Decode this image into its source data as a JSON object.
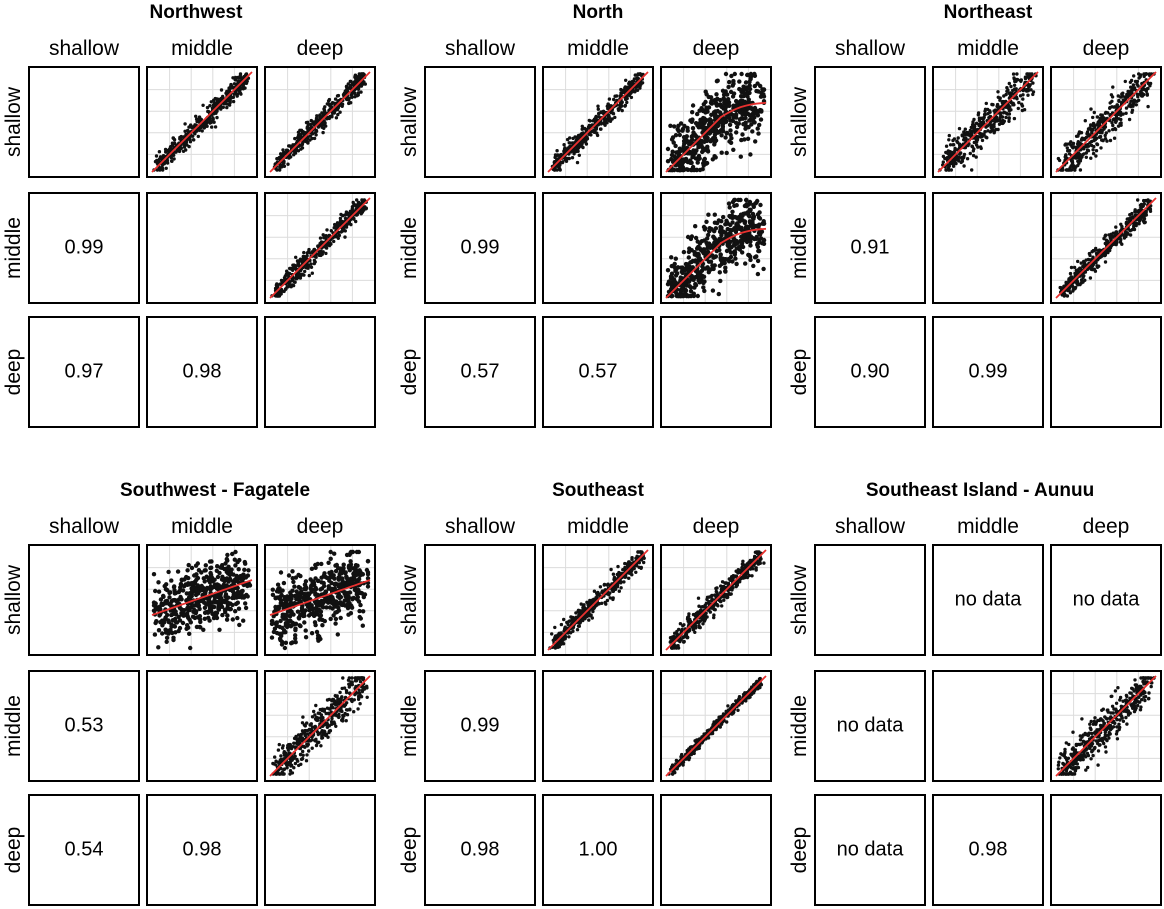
{
  "chart_data": [
    {
      "type": "scatter",
      "title": "Northwest",
      "variables": [
        "shallow",
        "middle",
        "deep"
      ],
      "correlations": {
        "middle_shallow": "0.99",
        "deep_shallow": "0.97",
        "deep_middle": "0.98"
      },
      "scatter_panels": {
        "shallow_middle": {
          "trend": "linear",
          "spread": "narrow"
        },
        "shallow_deep": {
          "trend": "linear",
          "spread": "narrow"
        },
        "middle_deep": {
          "trend": "linear",
          "spread": "narrow"
        }
      }
    },
    {
      "type": "scatter",
      "title": "North",
      "variables": [
        "shallow",
        "middle",
        "deep"
      ],
      "correlations": {
        "middle_shallow": "0.99",
        "deep_shallow": "0.57",
        "deep_middle": "0.57"
      },
      "scatter_panels": {
        "shallow_middle": {
          "trend": "linear",
          "spread": "narrow"
        },
        "shallow_deep": {
          "trend": "saturating",
          "spread": "wide"
        },
        "middle_deep": {
          "trend": "saturating",
          "spread": "wide"
        }
      }
    },
    {
      "type": "scatter",
      "title": "Northeast",
      "variables": [
        "shallow",
        "middle",
        "deep"
      ],
      "correlations": {
        "middle_shallow": "0.91",
        "deep_shallow": "0.90",
        "deep_middle": "0.99"
      },
      "scatter_panels": {
        "shallow_middle": {
          "trend": "linear",
          "spread": "medium"
        },
        "shallow_deep": {
          "trend": "linear",
          "spread": "medium"
        },
        "middle_deep": {
          "trend": "linear",
          "spread": "narrow"
        }
      }
    },
    {
      "type": "scatter",
      "title": "Southwest - Fagatele",
      "variables": [
        "shallow",
        "middle",
        "deep"
      ],
      "correlations": {
        "middle_shallow": "0.53",
        "deep_shallow": "0.54",
        "deep_middle": "0.98"
      },
      "scatter_panels": {
        "shallow_middle": {
          "trend": "weak",
          "spread": "wide"
        },
        "shallow_deep": {
          "trend": "weak",
          "spread": "wide"
        },
        "middle_deep": {
          "trend": "linear",
          "spread": "medium"
        }
      }
    },
    {
      "type": "scatter",
      "title": "Southeast",
      "variables": [
        "shallow",
        "middle",
        "deep"
      ],
      "correlations": {
        "middle_shallow": "0.99",
        "deep_shallow": "0.98",
        "deep_middle": "1.00"
      },
      "scatter_panels": {
        "shallow_middle": {
          "trend": "linear",
          "spread": "narrow"
        },
        "shallow_deep": {
          "trend": "linear",
          "spread": "narrow"
        },
        "middle_deep": {
          "trend": "linear",
          "spread": "very-narrow"
        }
      }
    },
    {
      "type": "scatter",
      "title": "Southeast Island - Aunuu",
      "variables": [
        "shallow",
        "middle",
        "deep"
      ],
      "correlations": {
        "middle_shallow": "no data",
        "deep_shallow": "no data",
        "deep_middle": "0.98"
      },
      "upper_text": {
        "shallow_middle": "no data",
        "shallow_deep": "no data"
      },
      "scatter_panels": {
        "middle_deep": {
          "trend": "linear",
          "spread": "medium"
        }
      }
    }
  ],
  "colors": {
    "points": "#111111",
    "fit_line": "#e8312f",
    "grid": "#dcdcdc"
  }
}
